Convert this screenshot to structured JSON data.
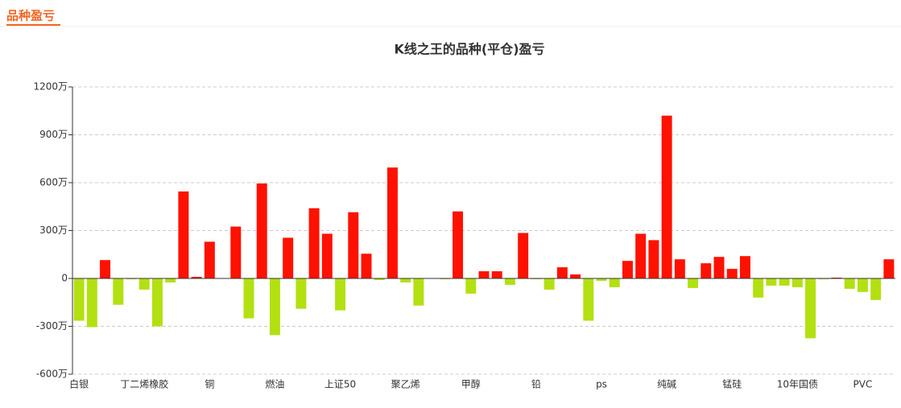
{
  "header": {
    "title": "品种盈亏"
  },
  "chart_data": {
    "type": "bar",
    "title": "K线之王的品种(平仓)盈亏",
    "categories": [
      "白银",
      null,
      null,
      null,
      null,
      "丁二烯橡胶",
      null,
      null,
      null,
      null,
      "铜",
      null,
      null,
      null,
      null,
      "燃油",
      null,
      null,
      null,
      null,
      "上证50",
      null,
      null,
      null,
      null,
      "聚乙烯",
      null,
      null,
      null,
      null,
      "甲醇",
      null,
      null,
      null,
      null,
      "铅",
      null,
      null,
      null,
      null,
      "ps",
      null,
      null,
      null,
      null,
      "纯碱",
      null,
      null,
      null,
      null,
      "锰硅",
      null,
      null,
      null,
      null,
      "10年国债",
      null,
      null,
      null,
      null,
      "PVC",
      null,
      null
    ],
    "values": [
      -265,
      -305,
      115,
      -165,
      -5,
      -70,
      -300,
      -25,
      545,
      10,
      230,
      0,
      325,
      -250,
      595,
      -355,
      255,
      -190,
      440,
      280,
      -200,
      415,
      155,
      -10,
      695,
      -25,
      -170,
      0,
      -5,
      420,
      -95,
      45,
      45,
      -40,
      285,
      -5,
      -70,
      70,
      25,
      -265,
      -15,
      -55,
      110,
      280,
      240,
      1020,
      120,
      -60,
      95,
      135,
      60,
      140,
      -120,
      -45,
      -45,
      -55,
      -375,
      -5,
      5,
      -65,
      -85,
      -135,
      120
    ],
    "positive_color": "#ff1100",
    "negative_color": "#b3e011",
    "ylim": [
      -600,
      1200
    ],
    "yticks": [
      {
        "value": -600,
        "label": "-600万"
      },
      {
        "value": -300,
        "label": "-300万"
      },
      {
        "value": 0,
        "label": "0"
      },
      {
        "value": 300,
        "label": "300万"
      },
      {
        "value": 600,
        "label": "600万"
      },
      {
        "value": 900,
        "label": "900万"
      },
      {
        "value": 1200,
        "label": "1200万"
      }
    ],
    "grid": true
  }
}
